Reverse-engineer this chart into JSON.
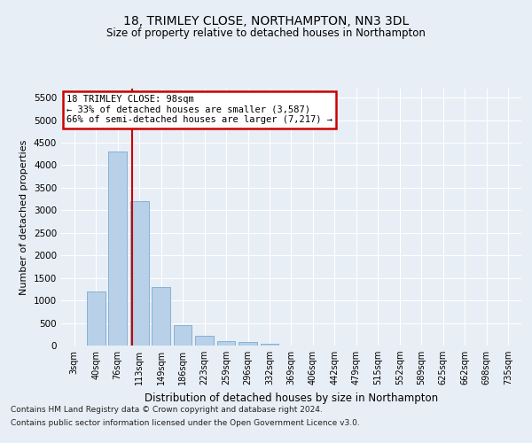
{
  "title1": "18, TRIMLEY CLOSE, NORTHAMPTON, NN3 3DL",
  "title2": "Size of property relative to detached houses in Northampton",
  "xlabel": "Distribution of detached houses by size in Northampton",
  "ylabel": "Number of detached properties",
  "categories": [
    "3sqm",
    "40sqm",
    "76sqm",
    "113sqm",
    "149sqm",
    "186sqm",
    "223sqm",
    "259sqm",
    "296sqm",
    "332sqm",
    "369sqm",
    "406sqm",
    "442sqm",
    "479sqm",
    "515sqm",
    "552sqm",
    "589sqm",
    "625sqm",
    "662sqm",
    "698sqm",
    "735sqm"
  ],
  "values": [
    0,
    1200,
    4300,
    3200,
    1300,
    450,
    220,
    100,
    80,
    40,
    0,
    0,
    0,
    0,
    0,
    0,
    0,
    0,
    0,
    0,
    0
  ],
  "bar_color": "#b8d0e8",
  "bar_edge_color": "#6a9fcc",
  "vline_color": "#cc0000",
  "annotation_text": "18 TRIMLEY CLOSE: 98sqm\n← 33% of detached houses are smaller (3,587)\n66% of semi-detached houses are larger (7,217) →",
  "annotation_box_color": "#ffffff",
  "annotation_box_edge_color": "#cc0000",
  "ylim": [
    0,
    5700
  ],
  "yticks": [
    0,
    500,
    1000,
    1500,
    2000,
    2500,
    3000,
    3500,
    4000,
    4500,
    5000,
    5500
  ],
  "footer1": "Contains HM Land Registry data © Crown copyright and database right 2024.",
  "footer2": "Contains public sector information licensed under the Open Government Licence v3.0.",
  "background_color": "#e8eef5",
  "plot_bg_color": "#e8eef5",
  "grid_color": "#ffffff",
  "vline_x": 2.68
}
